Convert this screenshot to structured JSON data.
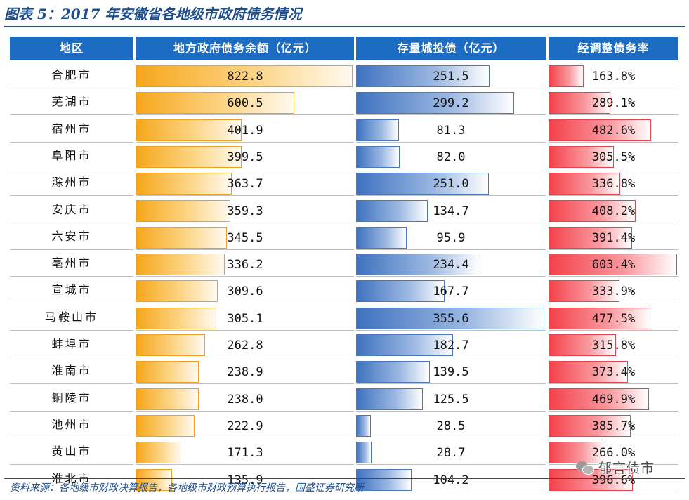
{
  "figure_title": "图表 5：2017 年安徽省各地级市政府债务情况",
  "source": "资料来源：各地级市财政决算报告，各地级市财政预算执行报告，国盛证券研究所",
  "watermark": "郁言债市",
  "colors": {
    "header_bg": "#1c6cc3",
    "title": "#1f4e8c",
    "debt_bar": "#f6a71c",
    "chengtou_bar": "#3f72bf",
    "rate_bar": "#f4414a"
  },
  "chart_data": {
    "type": "table",
    "columns": [
      "地区",
      "地方政府债务余额（亿元）",
      "存量城投债（亿元）",
      "经调整债务率"
    ],
    "categories": [
      "合肥市",
      "芜湖市",
      "宿州市",
      "阜阳市",
      "滁州市",
      "安庆市",
      "六安市",
      "亳州市",
      "宣城市",
      "马鞍山市",
      "蚌埠市",
      "淮南市",
      "铜陵市",
      "池州市",
      "黄山市",
      "淮北市"
    ],
    "series": [
      {
        "name": "地方政府债务余额（亿元）",
        "values": [
          822.8,
          600.5,
          401.9,
          399.5,
          363.7,
          359.3,
          345.5,
          336.2,
          309.6,
          305.1,
          262.8,
          238.9,
          238.0,
          222.9,
          171.3,
          135.9
        ],
        "labels": [
          "822.8",
          "600.5",
          "401.9",
          "399.5",
          "363.7",
          "359.3",
          "345.5",
          "336.2",
          "309.6",
          "305.1",
          "262.8",
          "238.9",
          "238.0",
          "222.9",
          "171.3",
          "135.9"
        ]
      },
      {
        "name": "存量城投债（亿元）",
        "values": [
          251.5,
          299.2,
          81.3,
          82.0,
          251.0,
          134.7,
          95.9,
          234.4,
          167.7,
          355.6,
          182.7,
          139.5,
          125.5,
          28.5,
          28.7,
          104.2
        ],
        "labels": [
          "251.5",
          "299.2",
          "81.3",
          "82.0",
          "251.0",
          "134.7",
          "95.9",
          "234.4",
          "167.7",
          "355.6",
          "182.7",
          "139.5",
          "125.5",
          "28.5",
          "28.7",
          "104.2"
        ]
      },
      {
        "name": "经调整债务率",
        "values": [
          163.8,
          289.1,
          482.6,
          305.5,
          336.8,
          408.2,
          391.4,
          603.4,
          333.9,
          477.5,
          315.8,
          373.4,
          469.9,
          385.7,
          266.0,
          396.6
        ],
        "labels": [
          "163.8%",
          "289.1%",
          "482.6%",
          "305.5%",
          "336.8%",
          "408.2%",
          "391.4%",
          "603.4%",
          "333.9%",
          "477.5%",
          "315.8%",
          "373.4%",
          "469.9%",
          "385.7%",
          "266.0%",
          "396.6%"
        ]
      }
    ]
  }
}
